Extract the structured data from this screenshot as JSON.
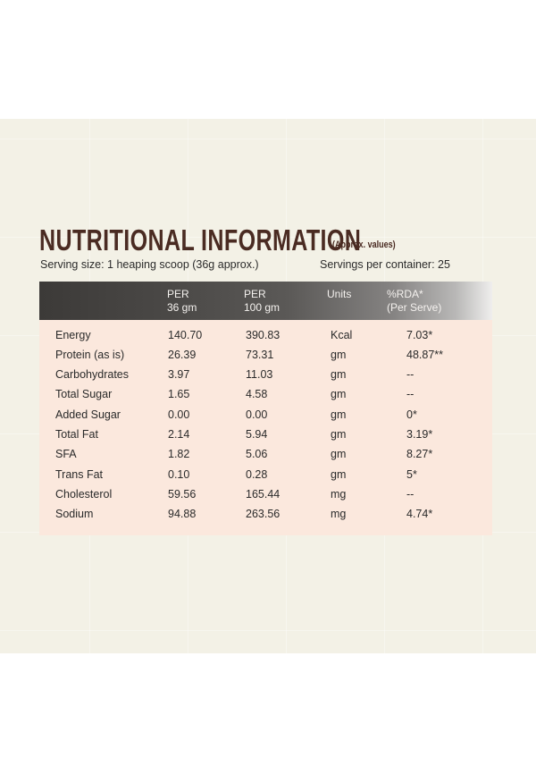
{
  "title": "NUTRITIONAL INFORMATION",
  "title_note": "(Approx. values)",
  "serving_size": "Serving size: 1 heaping scoop (36g approx.)",
  "servings_per_container": "Servings per container: 25",
  "table": {
    "headers": [
      {
        "line1": "",
        "line2": ""
      },
      {
        "line1": "PER",
        "line2": "36 gm"
      },
      {
        "line1": "PER",
        "line2": "100 gm"
      },
      {
        "line1": "Units",
        "line2": ""
      },
      {
        "line1": "%RDA*",
        "line2": "(Per Serve)"
      }
    ],
    "rows": [
      [
        "Energy",
        "140.70",
        "390.83",
        "Kcal",
        "7.03*"
      ],
      [
        "Protein (as is)",
        "26.39",
        "73.31",
        "gm",
        "48.87**"
      ],
      [
        "Carbohydrates",
        "3.97",
        "11.03",
        "gm",
        "--"
      ],
      [
        "Total Sugar",
        "1.65",
        "4.58",
        "gm",
        "--"
      ],
      [
        "Added Sugar",
        "0.00",
        "0.00",
        "gm",
        "0*"
      ],
      [
        "Total Fat",
        "2.14",
        "5.94",
        "gm",
        "3.19*"
      ],
      [
        "SFA",
        "1.82",
        "5.06",
        "gm",
        "8.27*"
      ],
      [
        "Trans Fat",
        "0.10",
        "0.28",
        "gm",
        "5*"
      ],
      [
        "Cholesterol",
        "59.56",
        "165.44",
        "mg",
        "--"
      ],
      [
        "Sodium",
        "94.88",
        "263.56",
        "mg",
        "4.74*"
      ]
    ]
  },
  "colors": {
    "title": "#4a2b22",
    "panel_background": "#f3f1e6",
    "table_background": "#fbe8dd",
    "header_dark": "#3c3a38"
  }
}
